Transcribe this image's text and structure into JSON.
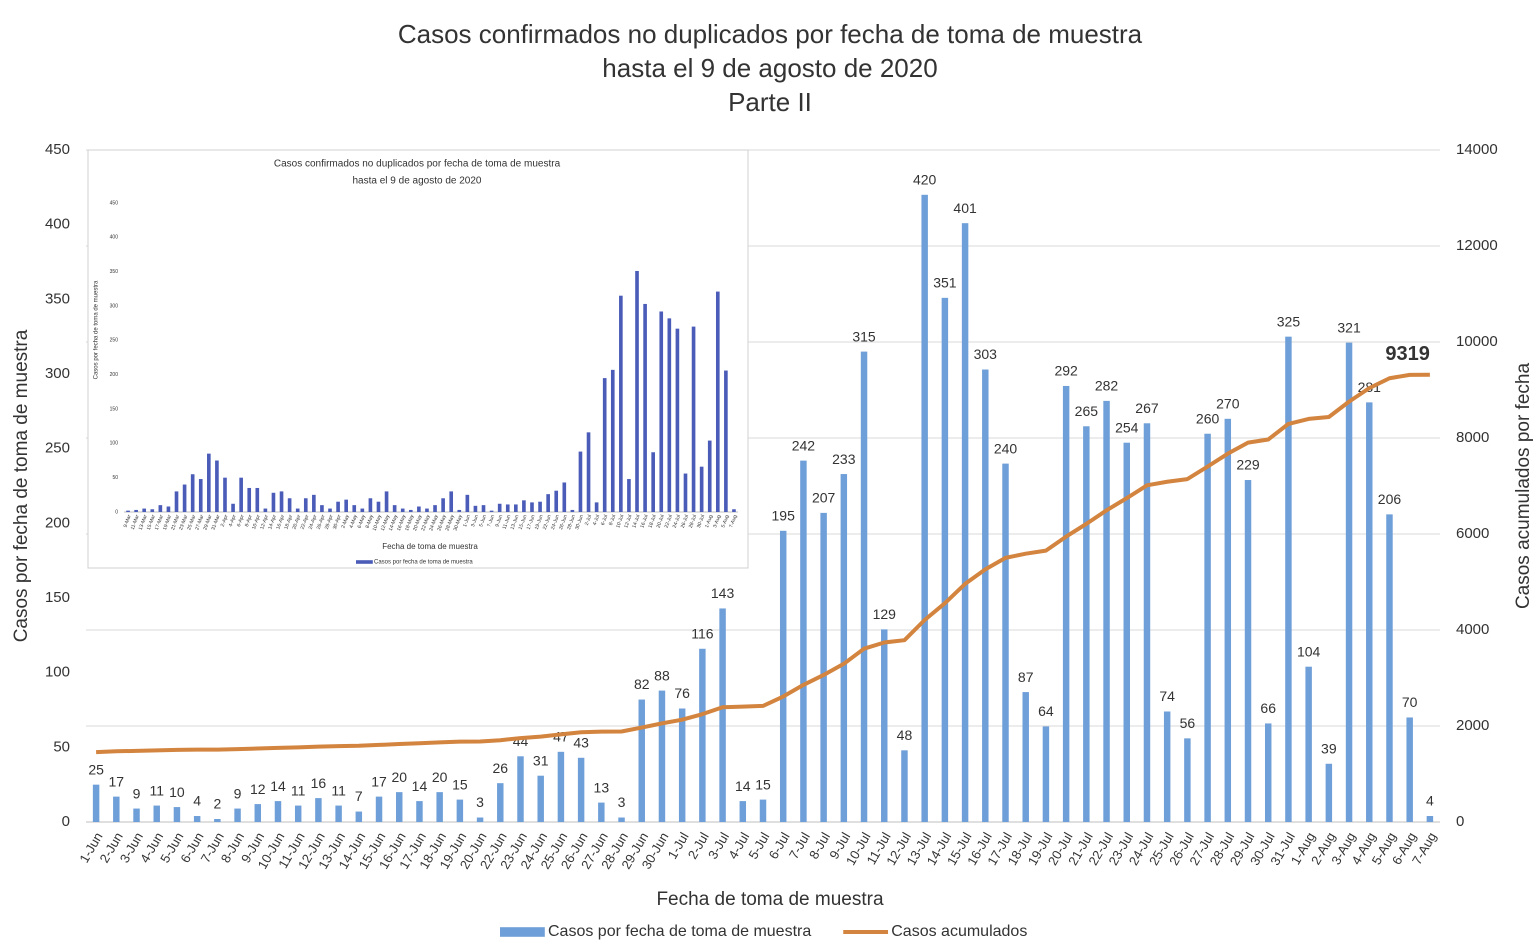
{
  "chart_data": [
    {
      "type": "bar",
      "title": [
        "Casos confirmados no duplicados por fecha de toma de muestra",
        "hasta el 9 de agosto de 2020",
        "Parte II"
      ],
      "xlabel": "Fecha de toma de muestra",
      "ylabel": "Casos por fecha de toma de muestra",
      "y2label": "Casos acumulados por fecha",
      "categories": [
        "1-Jun",
        "2-Jun",
        "3-Jun",
        "4-Jun",
        "5-Jun",
        "6-Jun",
        "7-Jun",
        "8-Jun",
        "9-Jun",
        "10-Jun",
        "11-Jun",
        "12-Jun",
        "13-Jun",
        "14-Jun",
        "15-Jun",
        "16-Jun",
        "17-Jun",
        "18-Jun",
        "19-Jun",
        "20-Jun",
        "22-Jun",
        "23-Jun",
        "24-Jun",
        "25-Jun",
        "26-Jun",
        "27-Jun",
        "28-Jun",
        "29-Jun",
        "30-Jun",
        "1-Jul",
        "2-Jul",
        "3-Jul",
        "4-Jul",
        "5-Jul",
        "6-Jul",
        "7-Jul",
        "8-Jul",
        "9-Jul",
        "10-Jul",
        "11-Jul",
        "12-Jul",
        "13-Jul",
        "14-Jul",
        "15-Jul",
        "16-Jul",
        "17-Jul",
        "18-Jul",
        "19-Jul",
        "20-Jul",
        "21-Jul",
        "22-Jul",
        "23-Jul",
        "24-Jul",
        "25-Jul",
        "26-Jul",
        "27-Jul",
        "28-Jul",
        "29-Jul",
        "30-Jul",
        "31-Jul",
        "1-Aug",
        "2-Aug",
        "3-Aug",
        "4-Aug",
        "5-Aug",
        "6-Aug",
        "7-Aug"
      ],
      "series": [
        {
          "name": "Casos por fecha de toma de muestra",
          "color": "#6f9fd8",
          "values": [
            25,
            17,
            9,
            11,
            10,
            4,
            2,
            9,
            12,
            14,
            11,
            16,
            11,
            7,
            17,
            20,
            14,
            20,
            15,
            3,
            26,
            44,
            31,
            47,
            43,
            13,
            3,
            82,
            88,
            76,
            116,
            143,
            14,
            15,
            195,
            242,
            207,
            233,
            315,
            129,
            48,
            420,
            351,
            401,
            303,
            240,
            87,
            64,
            292,
            265,
            282,
            254,
            267,
            74,
            56,
            260,
            270,
            229,
            66,
            325,
            104,
            39,
            321,
            281,
            206,
            70,
            4
          ]
        },
        {
          "name": "Casos acumulados",
          "color": "#d3843f",
          "axis": "y2",
          "values": [
            1456,
            1473,
            1482,
            1493,
            1503,
            1507,
            1509,
            1518,
            1530,
            1544,
            1555,
            1571,
            1582,
            1589,
            1606,
            1626,
            1640,
            1660,
            1675,
            1678,
            1704,
            1748,
            1779,
            1826,
            1869,
            1882,
            1885,
            1967,
            2055,
            2131,
            2247,
            2390,
            2404,
            2419,
            2614,
            2856,
            3063,
            3296,
            3611,
            3740,
            3788,
            4208,
            4559,
            4960,
            5263,
            5503,
            5590,
            5654,
            5946,
            6211,
            6493,
            6747,
            7014,
            7088,
            7144,
            7404,
            7674,
            7903,
            7969,
            8294,
            8398,
            8437,
            8758,
            9039,
            9245,
            9315,
            9319
          ]
        }
      ],
      "ylim": [
        0,
        450
      ],
      "yticks": [
        0,
        50,
        100,
        150,
        200,
        250,
        300,
        350,
        400,
        450
      ],
      "y2lim": [
        0,
        14000
      ],
      "y2ticks": [
        0,
        2000,
        4000,
        6000,
        8000,
        10000,
        12000,
        14000
      ],
      "grid": true,
      "legend": "bottom"
    },
    {
      "type": "bar",
      "title": [
        "Casos confirmados no duplicados por fecha de toma de muestra",
        "hasta el 9 de agosto de 2020"
      ],
      "xlabel": "Fecha de toma de muestra",
      "ylabel": "Casos por fecha de toma de muestra",
      "categories": [
        "9-Mar",
        "11-Mar",
        "13-Mar",
        "15-Mar",
        "17-Mar",
        "19-Mar",
        "21-Mar",
        "23-Mar",
        "25-Mar",
        "27-Mar",
        "29-Mar",
        "31-Mar",
        "2-Apr",
        "4-Apr",
        "6-Apr",
        "8-Apr",
        "10-Apr",
        "12-Apr",
        "14-Apr",
        "16-Apr",
        "18-Apr",
        "20-Apr",
        "22-Apr",
        "24-Apr",
        "26-Apr",
        "28-Apr",
        "30-Apr",
        "2-May",
        "4-May",
        "6-May",
        "8-May",
        "10-May",
        "12-May",
        "14-May",
        "16-May",
        "18-May",
        "20-May",
        "22-May",
        "24-May",
        "26-May",
        "28-May",
        "30-May",
        "1-Jun",
        "3-Jun",
        "5-Jun",
        "7-Jun",
        "9-Jun",
        "11-Jun",
        "13-Jun",
        "15-Jun",
        "17-Jun",
        "19-Jun",
        "22-Jun",
        "24-Jun",
        "26-Jun",
        "28-Jun",
        "30-Jun",
        "2-Jul",
        "4-Jul",
        "6-Jul",
        "8-Jul",
        "10-Jul",
        "12-Jul",
        "14-Jul",
        "16-Jul",
        "18-Jul",
        "20-Jul",
        "22-Jul",
        "24-Jul",
        "26-Jul",
        "28-Jul",
        "30-Jul",
        "1-Aug",
        "3-Aug",
        "5-Aug",
        "7-Aug"
      ],
      "series": [
        {
          "name": "Casos por fecha de toma de muestra",
          "color": "#4a5cb8",
          "values": [
            2,
            3,
            5,
            4,
            10,
            8,
            30,
            40,
            55,
            48,
            85,
            75,
            50,
            12,
            50,
            35,
            35,
            5,
            28,
            30,
            20,
            5,
            20,
            25,
            10,
            5,
            15,
            18,
            10,
            5,
            20,
            15,
            30,
            10,
            5,
            3,
            8,
            5,
            10,
            20,
            30,
            3,
            25,
            9,
            10,
            2,
            12,
            11,
            11,
            17,
            14,
            15,
            26,
            31,
            43,
            3,
            88,
            116,
            14,
            195,
            207,
            315,
            48,
            351,
            303,
            87,
            292,
            282,
            267,
            56,
            270,
            66,
            104,
            321,
            206,
            4
          ]
        }
      ],
      "ylim": [
        0,
        450
      ],
      "yticks": [
        0,
        50,
        100,
        150,
        200,
        250,
        300,
        350,
        400,
        450
      ],
      "grid": false,
      "legend": "bottom"
    }
  ]
}
